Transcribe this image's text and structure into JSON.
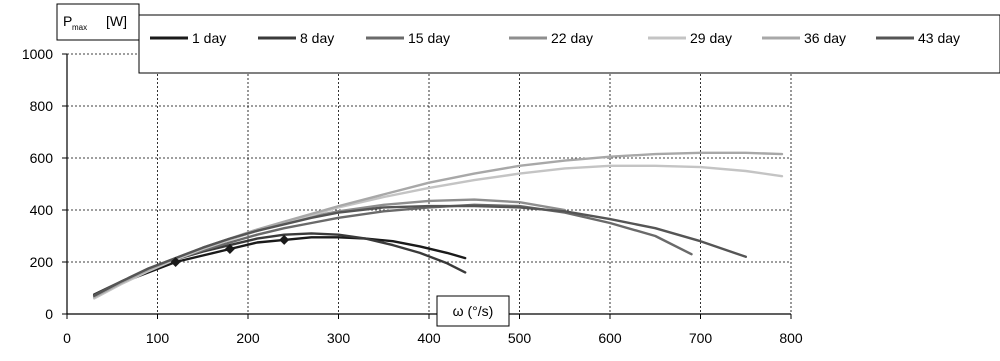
{
  "chart_data": {
    "type": "line",
    "title": "",
    "ylabel_main": "P",
    "ylabel_sub": "max",
    "ylabel_unit": "[W]",
    "xlabel": "ω (°/s)",
    "xlim": [
      0,
      800
    ],
    "ylim": [
      0,
      1000
    ],
    "xticks": [
      "0",
      "100",
      "200",
      "300",
      "400",
      "500",
      "600",
      "700",
      "800"
    ],
    "yticks": [
      "0",
      "200",
      "400",
      "600",
      "800",
      "1000"
    ],
    "grid": "dashed",
    "legend_position": "top",
    "series": [
      {
        "name": "1 day",
        "color": "#1a1a1a",
        "x": [
          30,
          60,
          90,
          120,
          150,
          180,
          210,
          240,
          270,
          300,
          330,
          360,
          390,
          420,
          440
        ],
        "y": [
          70,
          120,
          160,
          200,
          225,
          250,
          275,
          285,
          295,
          295,
          290,
          280,
          260,
          235,
          215
        ]
      },
      {
        "name": "8 day",
        "color": "#3a3a3a",
        "x": [
          30,
          60,
          90,
          120,
          150,
          180,
          210,
          240,
          270,
          300,
          330,
          360,
          390,
          420,
          440
        ],
        "y": [
          75,
          125,
          170,
          210,
          240,
          265,
          290,
          305,
          310,
          305,
          290,
          265,
          235,
          195,
          160
        ]
      },
      {
        "name": "15 day",
        "color": "#6a6a6a",
        "x": [
          30,
          60,
          90,
          120,
          150,
          180,
          210,
          240,
          270,
          300,
          350,
          400,
          450,
          500,
          550,
          600,
          650,
          690
        ],
        "y": [
          65,
          120,
          170,
          210,
          245,
          275,
          305,
          330,
          350,
          370,
          395,
          410,
          420,
          415,
          390,
          350,
          300,
          230
        ]
      },
      {
        "name": "22 day",
        "color": "#8e8e8e",
        "x": [
          30,
          60,
          90,
          120,
          150,
          180,
          210,
          240,
          270,
          300,
          350,
          400,
          450,
          500,
          550
        ],
        "y": [
          70,
          125,
          175,
          215,
          255,
          290,
          320,
          350,
          375,
          395,
          420,
          435,
          440,
          430,
          400
        ]
      },
      {
        "name": "29 day",
        "color": "#c4c4c4",
        "x": [
          30,
          60,
          90,
          120,
          150,
          180,
          210,
          240,
          270,
          300,
          350,
          400,
          450,
          500,
          550,
          600,
          650,
          700,
          750,
          790
        ],
        "y": [
          60,
          115,
          165,
          210,
          250,
          285,
          320,
          350,
          380,
          410,
          450,
          485,
          515,
          540,
          560,
          570,
          570,
          565,
          550,
          530
        ]
      },
      {
        "name": "36 day",
        "color": "#a8a8a8",
        "x": [
          30,
          60,
          90,
          120,
          150,
          180,
          210,
          240,
          270,
          300,
          350,
          400,
          450,
          500,
          550,
          600,
          650,
          700,
          750,
          790
        ],
        "y": [
          65,
          120,
          170,
          215,
          255,
          290,
          325,
          355,
          385,
          415,
          460,
          505,
          540,
          570,
          590,
          605,
          615,
          620,
          620,
          615
        ]
      },
      {
        "name": "43 day",
        "color": "#555555",
        "x": [
          30,
          60,
          90,
          120,
          150,
          180,
          210,
          240,
          270,
          300,
          350,
          400,
          450,
          500,
          550,
          600,
          650,
          700,
          750
        ],
        "y": [
          70,
          125,
          175,
          215,
          255,
          290,
          320,
          345,
          370,
          390,
          410,
          415,
          415,
          410,
          395,
          365,
          330,
          280,
          220
        ]
      }
    ]
  }
}
